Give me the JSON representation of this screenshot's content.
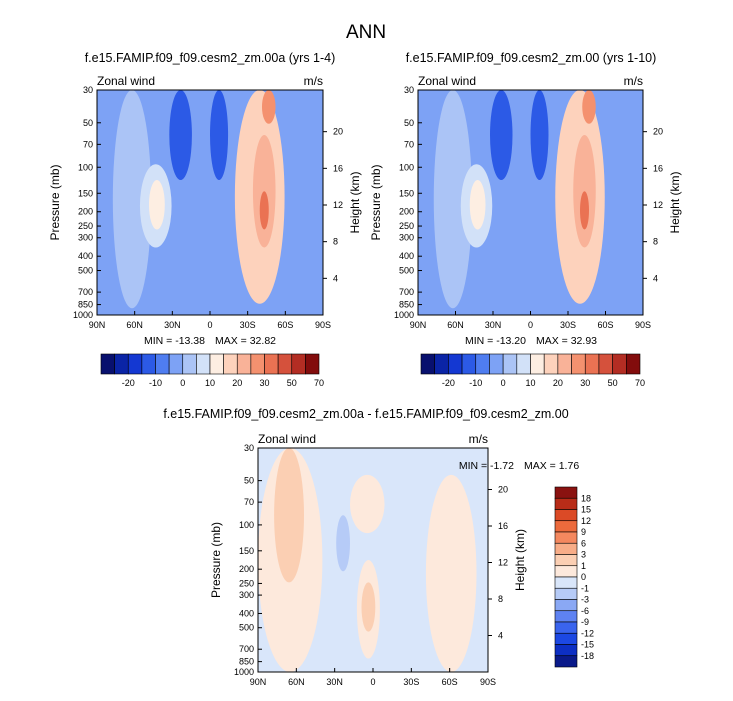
{
  "main_title": "ANN",
  "chart_data": [
    {
      "type": "heatmap",
      "title": "f.e15.FAMIP.f09_f09.cesm2_zm.00a (yrs 1-4)",
      "left_label": "Zonal wind",
      "right_label": "m/s",
      "xlabel": "",
      "ylabel": "Pressure (mb)",
      "y2label": "Height (km)",
      "x_ticks": [
        "90N",
        "60N",
        "30N",
        "0",
        "30S",
        "60S",
        "90S"
      ],
      "y_ticks": [
        "30",
        "50",
        "70",
        "100",
        "150",
        "200",
        "250",
        "300",
        "400",
        "500",
        "700",
        "850",
        "1000"
      ],
      "y2_ticks": [
        "4",
        "8",
        "12",
        "16",
        "20"
      ],
      "min_label": "MIN = -13.38",
      "max_label": "MAX = 32.82",
      "min": -13.38,
      "max": 32.82,
      "ylim": [
        1000,
        30
      ],
      "colorbar_labels": [
        "-20",
        "-10",
        "0",
        "10",
        "20",
        "30",
        "50",
        "70"
      ],
      "levels": [
        -25,
        -20,
        -15,
        -10,
        -5,
        0,
        5,
        10,
        15,
        20,
        25,
        30,
        40,
        50,
        60,
        70
      ],
      "colors": [
        "#08106e",
        "#0a24a6",
        "#1438d2",
        "#2c5ae6",
        "#4f7df0",
        "#7da2f5",
        "#abc4f6",
        "#d2e1f8",
        "#fdeee2",
        "#fdd2bc",
        "#f9b298",
        "#f4916f",
        "#ea7253",
        "#d5513c",
        "#b32d23",
        "#820c0c"
      ],
      "regions": [
        {
          "value": -5,
          "x": [
            0,
            1
          ],
          "y": [
            0,
            1
          ]
        },
        {
          "value": 2,
          "x": [
            0.07,
            0.24
          ],
          "y": [
            0,
            0.97
          ]
        },
        {
          "value": -12,
          "x": [
            0.32,
            0.42
          ],
          "y": [
            0,
            0.4
          ]
        },
        {
          "value": -12,
          "x": [
            0.5,
            0.58
          ],
          "y": [
            0,
            0.4
          ]
        },
        {
          "value": 7,
          "x": [
            0.19,
            0.33
          ],
          "y": [
            0.33,
            0.7
          ]
        },
        {
          "value": 12,
          "x": [
            0.23,
            0.3
          ],
          "y": [
            0.4,
            0.62
          ]
        },
        {
          "value": 18,
          "x": [
            0.61,
            0.83
          ],
          "y": [
            0,
            0.95
          ]
        },
        {
          "value": 23,
          "x": [
            0.69,
            0.79
          ],
          "y": [
            0.2,
            0.7
          ]
        },
        {
          "value": 27,
          "x": [
            0.73,
            0.79
          ],
          "y": [
            0,
            0.15
          ]
        },
        {
          "value": 32,
          "x": [
            0.72,
            0.76
          ],
          "y": [
            0.45,
            0.62
          ]
        }
      ]
    },
    {
      "type": "heatmap",
      "title": "f.e15.FAMIP.f09_f09.cesm2_zm.00 (yrs 1-10)",
      "left_label": "Zonal wind",
      "right_label": "m/s",
      "xlabel": "",
      "ylabel": "Pressure (mb)",
      "y2label": "Height (km)",
      "x_ticks": [
        "90N",
        "60N",
        "30N",
        "0",
        "30S",
        "60S",
        "90S"
      ],
      "y_ticks": [
        "30",
        "50",
        "70",
        "100",
        "150",
        "200",
        "250",
        "300",
        "400",
        "500",
        "700",
        "850",
        "1000"
      ],
      "y2_ticks": [
        "4",
        "8",
        "12",
        "16",
        "20"
      ],
      "min_label": "MIN = -13.20",
      "max_label": "MAX = 32.93",
      "min": -13.2,
      "max": 32.93,
      "ylim": [
        1000,
        30
      ],
      "colorbar_labels": [
        "-20",
        "-10",
        "0",
        "10",
        "20",
        "30",
        "50",
        "70"
      ],
      "levels": [
        -25,
        -20,
        -15,
        -10,
        -5,
        0,
        5,
        10,
        15,
        20,
        25,
        30,
        40,
        50,
        60,
        70
      ],
      "colors": [
        "#08106e",
        "#0a24a6",
        "#1438d2",
        "#2c5ae6",
        "#4f7df0",
        "#7da2f5",
        "#abc4f6",
        "#d2e1f8",
        "#fdeee2",
        "#fdd2bc",
        "#f9b298",
        "#f4916f",
        "#ea7253",
        "#d5513c",
        "#b32d23",
        "#820c0c"
      ],
      "regions": [
        {
          "value": -5,
          "x": [
            0,
            1
          ],
          "y": [
            0,
            1
          ]
        },
        {
          "value": 2,
          "x": [
            0.07,
            0.24
          ],
          "y": [
            0,
            0.97
          ]
        },
        {
          "value": -12,
          "x": [
            0.32,
            0.42
          ],
          "y": [
            0,
            0.4
          ]
        },
        {
          "value": -12,
          "x": [
            0.5,
            0.58
          ],
          "y": [
            0,
            0.4
          ]
        },
        {
          "value": 7,
          "x": [
            0.19,
            0.33
          ],
          "y": [
            0.33,
            0.7
          ]
        },
        {
          "value": 12,
          "x": [
            0.23,
            0.3
          ],
          "y": [
            0.4,
            0.62
          ]
        },
        {
          "value": 18,
          "x": [
            0.61,
            0.83
          ],
          "y": [
            0,
            0.95
          ]
        },
        {
          "value": 23,
          "x": [
            0.69,
            0.79
          ],
          "y": [
            0.2,
            0.7
          ]
        },
        {
          "value": 27,
          "x": [
            0.73,
            0.79
          ],
          "y": [
            0,
            0.15
          ]
        },
        {
          "value": 32,
          "x": [
            0.72,
            0.76
          ],
          "y": [
            0.45,
            0.62
          ]
        }
      ]
    },
    {
      "type": "heatmap",
      "title": "f.e15.FAMIP.f09_f09.cesm2_zm.00a - f.e15.FAMIP.f09_f09.cesm2_zm.00",
      "left_label": "Zonal wind",
      "right_label": "m/s",
      "xlabel": "",
      "ylabel": "Pressure (mb)",
      "y2label": "Height (km)",
      "x_ticks": [
        "90N",
        "60N",
        "30N",
        "0",
        "30S",
        "60S",
        "90S"
      ],
      "y_ticks": [
        "30",
        "50",
        "70",
        "100",
        "150",
        "200",
        "250",
        "300",
        "400",
        "500",
        "700",
        "850",
        "1000"
      ],
      "y2_ticks": [
        "4",
        "8",
        "12",
        "16",
        "20"
      ],
      "min_label": "MIN = -1.72",
      "max_label": "MAX = 1.76",
      "min": -1.72,
      "max": 1.76,
      "ylim": [
        1000,
        30
      ],
      "colorbar_labels": [
        "18",
        "15",
        "12",
        "9",
        "6",
        "3",
        "1",
        "0",
        "-1",
        "-3",
        "-6",
        "-9",
        "-12",
        "-15",
        "-18"
      ],
      "levels": [
        -18,
        -15,
        -12,
        -9,
        -6,
        -3,
        -1,
        0,
        1,
        3,
        6,
        9,
        12,
        15,
        18
      ],
      "colors": [
        "#0a1a8a",
        "#0d2fc4",
        "#1c48e3",
        "#3a64ee",
        "#5e82f2",
        "#8aa8f4",
        "#b6cbf7",
        "#d9e6fa",
        "#fde9dc",
        "#fbcfb3",
        "#f8ad88",
        "#f4885f",
        "#ec6a3c",
        "#db4a26",
        "#b82c18",
        "#8a1210"
      ],
      "regions": [
        {
          "value": -0.5,
          "x": [
            0,
            1
          ],
          "y": [
            0,
            1
          ]
        },
        {
          "value": 0.5,
          "x": [
            0,
            0.28
          ],
          "y": [
            0,
            1
          ]
        },
        {
          "value": 2,
          "x": [
            0.07,
            0.2
          ],
          "y": [
            0,
            0.6
          ]
        },
        {
          "value": 0.5,
          "x": [
            0.4,
            0.55
          ],
          "y": [
            0.12,
            0.38
          ]
        },
        {
          "value": 0.5,
          "x": [
            0.43,
            0.53
          ],
          "y": [
            0.5,
            0.94
          ]
        },
        {
          "value": 2,
          "x": [
            0.45,
            0.51
          ],
          "y": [
            0.6,
            0.82
          ]
        },
        {
          "value": 0.5,
          "x": [
            0.73,
            0.95
          ],
          "y": [
            0.12,
            1
          ]
        },
        {
          "value": -0.5,
          "x": [
            0.88,
            0.93
          ],
          "y": [
            0,
            0.08
          ]
        },
        {
          "value": -1.5,
          "x": [
            0.34,
            0.4
          ],
          "y": [
            0.3,
            0.55
          ]
        }
      ]
    }
  ]
}
